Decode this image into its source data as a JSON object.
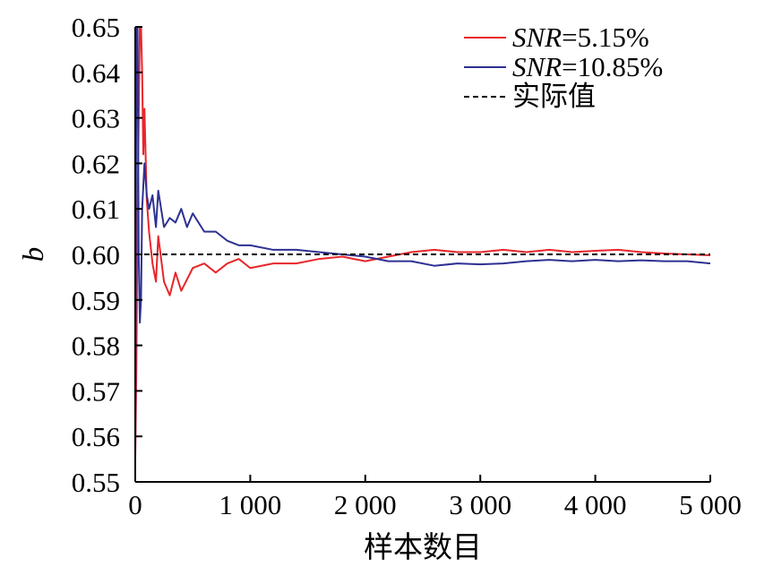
{
  "chart_data": {
    "type": "line",
    "title": "",
    "xlabel": "样本数目",
    "ylabel": "b",
    "xlim": [
      0,
      5000
    ],
    "ylim": [
      0.55,
      0.65
    ],
    "grid": false,
    "legend_position": "top-right",
    "x_tick_values": [
      0,
      1000,
      2000,
      3000,
      4000,
      5000
    ],
    "x_tick_labels": [
      "0",
      "1 000",
      "2 000",
      "3 000",
      "4 000",
      "5 000"
    ],
    "y_tick_values": [
      0.55,
      0.56,
      0.57,
      0.58,
      0.59,
      0.6,
      0.61,
      0.62,
      0.63,
      0.64,
      0.65
    ],
    "y_tick_labels": [
      "0.55",
      "0.56",
      "0.57",
      "0.58",
      "0.59",
      "0.60",
      "0.61",
      "0.62",
      "0.63",
      "0.64",
      "0.65"
    ],
    "legend": [
      {
        "prefix": "SNR",
        "suffix": "=5.15%",
        "color": "#e8262a",
        "style": "solid"
      },
      {
        "prefix": "SNR",
        "suffix": "=10.85%",
        "color": "#2e3192",
        "style": "solid"
      },
      {
        "prefix": "",
        "suffix": "实际值",
        "color": "#000000",
        "style": "dashed"
      }
    ],
    "series": [
      {
        "color": "#e8262a",
        "x": [
          0,
          10,
          20,
          30,
          40,
          50,
          60,
          70,
          80,
          100,
          120,
          150,
          180,
          200,
          250,
          300,
          350,
          400,
          500,
          600,
          700,
          800,
          900,
          1000,
          1200,
          1400,
          1600,
          1800,
          2000,
          2200,
          2400,
          2600,
          2800,
          3000,
          3200,
          3400,
          3600,
          3800,
          4000,
          4200,
          4400,
          4600,
          4800,
          5000
        ],
        "y": [
          0.555,
          0.575,
          0.61,
          0.63,
          0.65,
          0.65,
          0.64,
          0.622,
          0.632,
          0.612,
          0.605,
          0.598,
          0.594,
          0.604,
          0.594,
          0.591,
          0.596,
          0.592,
          0.597,
          0.598,
          0.596,
          0.598,
          0.599,
          0.597,
          0.598,
          0.598,
          0.599,
          0.5995,
          0.5985,
          0.5995,
          0.6005,
          0.601,
          0.6005,
          0.6005,
          0.601,
          0.6005,
          0.601,
          0.6005,
          0.6008,
          0.601,
          0.6005,
          0.6002,
          0.6,
          0.5998
        ]
      },
      {
        "color": "#2e3192",
        "x": [
          0,
          10,
          20,
          30,
          40,
          50,
          60,
          80,
          100,
          120,
          150,
          180,
          200,
          250,
          300,
          350,
          400,
          450,
          500,
          600,
          700,
          800,
          900,
          1000,
          1200,
          1400,
          1600,
          1800,
          2000,
          2200,
          2400,
          2600,
          2800,
          3000,
          3200,
          3400,
          3600,
          3800,
          4000,
          4200,
          4400,
          4600,
          4800,
          5000
        ],
        "y": [
          0.556,
          0.65,
          0.65,
          0.6,
          0.585,
          0.59,
          0.61,
          0.62,
          0.613,
          0.61,
          0.613,
          0.606,
          0.614,
          0.606,
          0.608,
          0.607,
          0.61,
          0.606,
          0.609,
          0.605,
          0.605,
          0.603,
          0.602,
          0.602,
          0.601,
          0.601,
          0.6005,
          0.6,
          0.5995,
          0.5985,
          0.5985,
          0.5975,
          0.598,
          0.5978,
          0.598,
          0.5985,
          0.5988,
          0.5985,
          0.5988,
          0.5985,
          0.5987,
          0.5985,
          0.5985,
          0.598
        ]
      },
      {
        "color": "#000000",
        "dashed": true,
        "x": [
          0,
          5000
        ],
        "y": [
          0.6,
          0.6
        ]
      }
    ]
  }
}
